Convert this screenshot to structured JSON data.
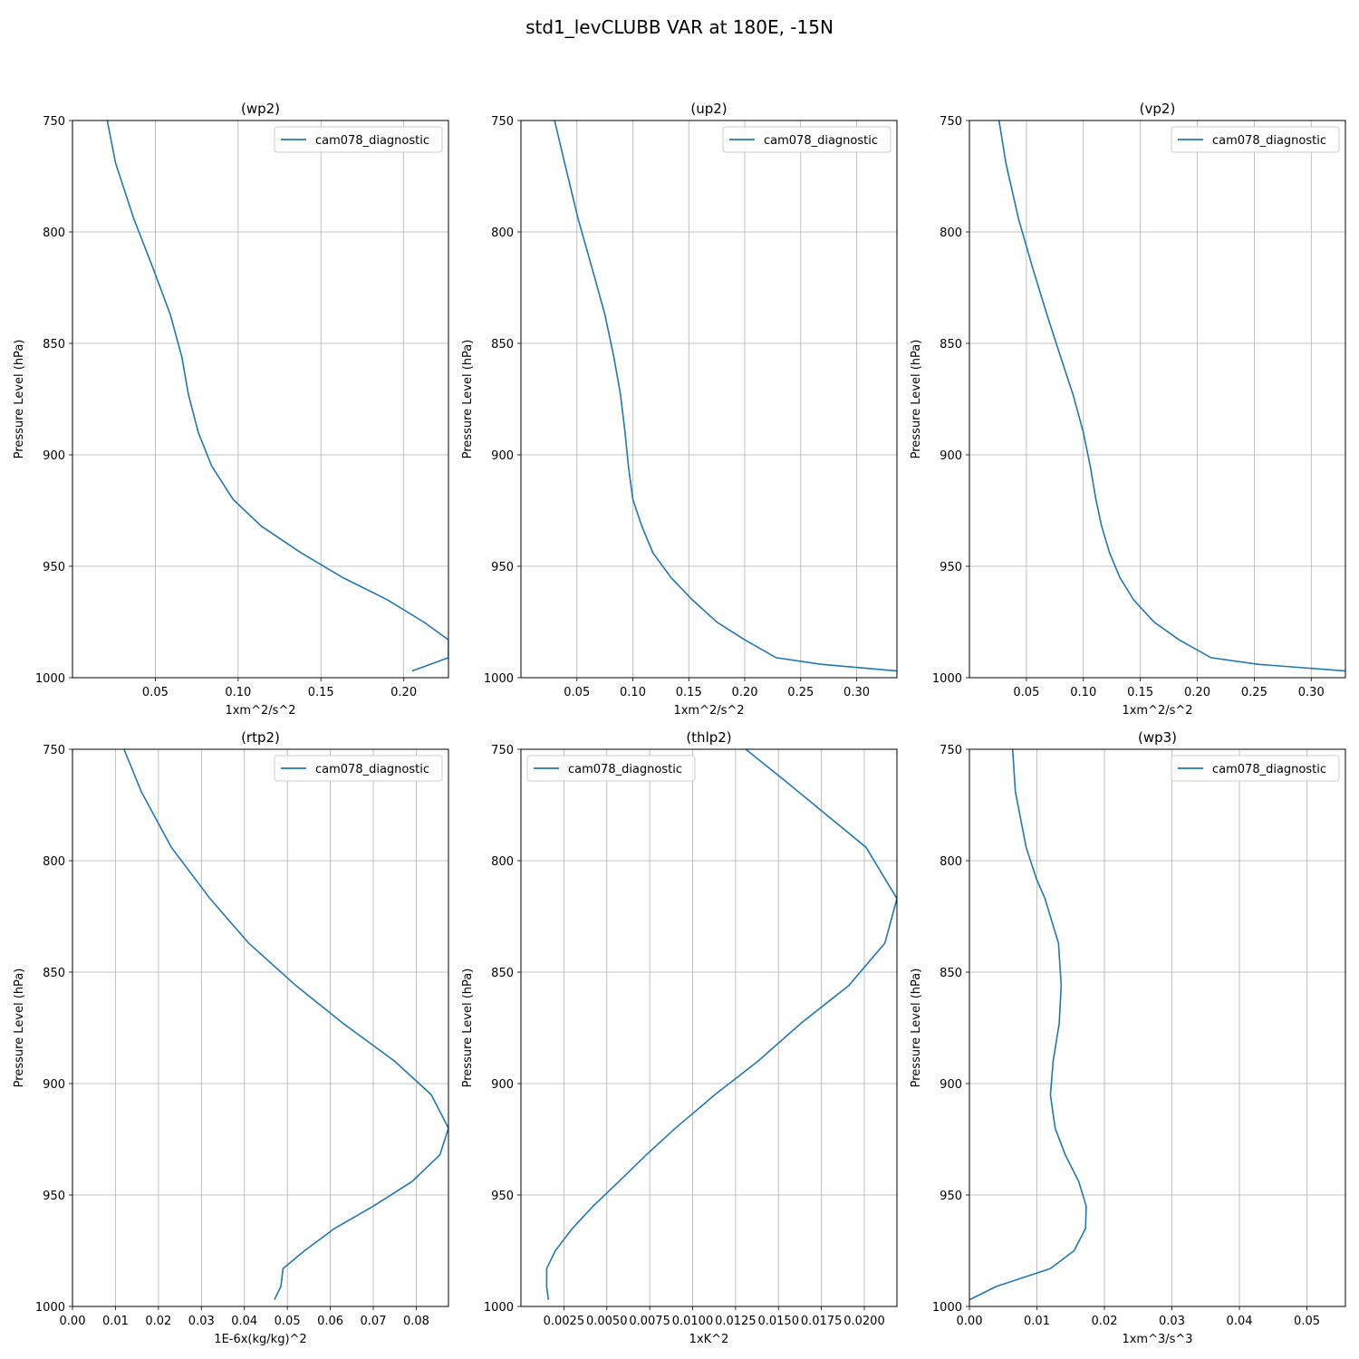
{
  "suptitle": "std1_levCLUBB VAR at 180E, -15N",
  "chart_data": [
    {
      "type": "line",
      "title": "(wp2)",
      "xlabel": "1xm^2/s^2",
      "ylabel": "Pressure Level (hPa)",
      "xlim": [
        0.0,
        0.227
      ],
      "ylim": [
        1000,
        750
      ],
      "xticks": [
        0.05,
        0.1,
        0.15,
        0.2
      ],
      "xtick_labels": [
        "0.05",
        "0.10",
        "0.15",
        "0.20"
      ],
      "yticks": [
        750,
        800,
        850,
        900,
        950,
        1000
      ],
      "ytick_labels": [
        "750",
        "800",
        "850",
        "900",
        "950",
        "1000"
      ],
      "grid": true,
      "legend_loc": "upper right",
      "color": "#1f77b4",
      "series": [
        {
          "name": "cam078_diagnostic",
          "x": [
            0.021,
            0.026,
            0.037,
            0.049,
            0.059,
            0.066,
            0.07,
            0.076,
            0.084,
            0.097,
            0.114,
            0.138,
            0.163,
            0.19,
            0.212,
            0.227,
            0.227,
            0.205
          ],
          "y": [
            750,
            769,
            794,
            817,
            837,
            856,
            873,
            890,
            905,
            920,
            932,
            944,
            955,
            965,
            975,
            983,
            991,
            997
          ]
        }
      ]
    },
    {
      "type": "line",
      "title": "(up2)",
      "xlabel": "1xm^2/s^2",
      "ylabel": "Pressure Level (hPa)",
      "xlim": [
        0.0,
        0.336
      ],
      "ylim": [
        1000,
        750
      ],
      "xticks": [
        0.05,
        0.1,
        0.15,
        0.2,
        0.25,
        0.3
      ],
      "xtick_labels": [
        "0.05",
        "0.10",
        "0.15",
        "0.20",
        "0.25",
        "0.30"
      ],
      "yticks": [
        750,
        800,
        850,
        900,
        950,
        1000
      ],
      "ytick_labels": [
        "750",
        "800",
        "850",
        "900",
        "950",
        "1000"
      ],
      "grid": true,
      "legend_loc": "upper right",
      "color": "#1f77b4",
      "series": [
        {
          "name": "cam078_diagnostic",
          "x": [
            0.03,
            0.039,
            0.051,
            0.064,
            0.075,
            0.083,
            0.089,
            0.093,
            0.096,
            0.1,
            0.108,
            0.118,
            0.134,
            0.153,
            0.175,
            0.2,
            0.228,
            0.268,
            0.336
          ],
          "y": [
            750,
            769,
            794,
            817,
            837,
            856,
            873,
            890,
            905,
            920,
            932,
            944,
            955,
            965,
            975,
            983,
            991,
            994,
            997
          ]
        }
      ]
    },
    {
      "type": "line",
      "title": "(vp2)",
      "xlabel": "1xm^2/s^2",
      "ylabel": "Pressure Level (hPa)",
      "xlim": [
        0.0,
        0.33
      ],
      "ylim": [
        1000,
        750
      ],
      "xticks": [
        0.05,
        0.1,
        0.15,
        0.2,
        0.25,
        0.3
      ],
      "xtick_labels": [
        "0.05",
        "0.10",
        "0.15",
        "0.20",
        "0.25",
        "0.30"
      ],
      "yticks": [
        750,
        800,
        850,
        900,
        950,
        1000
      ],
      "ytick_labels": [
        "750",
        "800",
        "850",
        "900",
        "950",
        "1000"
      ],
      "grid": true,
      "legend_loc": "upper right",
      "color": "#1f77b4",
      "series": [
        {
          "name": "cam078_diagnostic",
          "x": [
            0.026,
            0.032,
            0.043,
            0.056,
            0.068,
            0.08,
            0.091,
            0.1,
            0.106,
            0.111,
            0.116,
            0.123,
            0.132,
            0.144,
            0.162,
            0.184,
            0.212,
            0.253,
            0.33
          ],
          "y": [
            750,
            769,
            794,
            817,
            837,
            856,
            873,
            890,
            905,
            920,
            932,
            944,
            955,
            965,
            975,
            983,
            991,
            994,
            997
          ]
        }
      ]
    },
    {
      "type": "line",
      "title": "(rtp2)",
      "xlabel": "1E-6x(kg/kg)^2",
      "ylabel": "Pressure Level (hPa)",
      "xlim": [
        0.0,
        0.0875
      ],
      "ylim": [
        1000,
        750
      ],
      "xticks": [
        0.0,
        0.01,
        0.02,
        0.03,
        0.04,
        0.05,
        0.06,
        0.07,
        0.08
      ],
      "xtick_labels": [
        "0.00",
        "0.01",
        "0.02",
        "0.03",
        "0.04",
        "0.05",
        "0.06",
        "0.07",
        "0.08"
      ],
      "yticks": [
        750,
        800,
        850,
        900,
        950,
        1000
      ],
      "ytick_labels": [
        "750",
        "800",
        "850",
        "900",
        "950",
        "1000"
      ],
      "grid": true,
      "legend_loc": "upper right",
      "color": "#1f77b4",
      "series": [
        {
          "name": "cam078_diagnostic",
          "x": [
            0.012,
            0.016,
            0.023,
            0.032,
            0.041,
            0.052,
            0.063,
            0.075,
            0.0835,
            0.0875,
            0.0855,
            0.079,
            0.07,
            0.061,
            0.054,
            0.049,
            0.0485,
            0.047
          ],
          "y": [
            750,
            769,
            794,
            817,
            837,
            856,
            873,
            890,
            905,
            920,
            932,
            944,
            955,
            965,
            975,
            983,
            991,
            997
          ]
        }
      ]
    },
    {
      "type": "line",
      "title": "(thlp2)",
      "xlabel": "1xK^2",
      "ylabel": "Pressure Level (hPa)",
      "xlim": [
        0.0,
        0.0219
      ],
      "ylim": [
        1000,
        750
      ],
      "xticks": [
        0.0025,
        0.005,
        0.0075,
        0.01,
        0.0125,
        0.015,
        0.0175,
        0.02
      ],
      "xtick_labels": [
        "0.0025",
        "0.0050",
        "0.0075",
        "0.0100",
        "0.0125",
        "0.0150",
        "0.0175",
        "0.0200"
      ],
      "yticks": [
        750,
        800,
        850,
        900,
        950,
        1000
      ],
      "ytick_labels": [
        "750",
        "800",
        "850",
        "900",
        "950",
        "1000"
      ],
      "grid": true,
      "legend_loc": "upper left",
      "color": "#1f77b4",
      "series": [
        {
          "name": "cam078_diagnostic",
          "x": [
            0.0131,
            0.0152,
            0.0201,
            0.0219,
            0.0212,
            0.0191,
            0.0163,
            0.0138,
            0.0113,
            0.009,
            0.0073,
            0.0057,
            0.0042,
            0.003,
            0.002,
            0.0015,
            0.0015,
            0.0016
          ],
          "y": [
            750,
            763,
            794,
            817,
            837,
            856,
            873,
            890,
            905,
            920,
            932,
            944,
            955,
            965,
            975,
            983,
            991,
            997
          ]
        }
      ]
    },
    {
      "type": "line",
      "title": "(wp3)",
      "xlabel": "1xm^3/s^3",
      "ylabel": "Pressure Level (hPa)",
      "xlim": [
        0.0,
        0.0557
      ],
      "ylim": [
        1000,
        750
      ],
      "xticks": [
        0.0,
        0.01,
        0.02,
        0.03,
        0.04,
        0.05
      ],
      "xtick_labels": [
        "0.00",
        "0.01",
        "0.02",
        "0.03",
        "0.04",
        "0.05"
      ],
      "yticks": [
        750,
        800,
        850,
        900,
        950,
        1000
      ],
      "ytick_labels": [
        "750",
        "800",
        "850",
        "900",
        "950",
        "1000"
      ],
      "grid": true,
      "legend_loc": "upper right",
      "color": "#1f77b4",
      "series": [
        {
          "name": "cam078_diagnostic",
          "x": [
            0.0064,
            0.0068,
            0.0084,
            0.0099,
            0.0112,
            0.0132,
            0.0136,
            0.0133,
            0.0124,
            0.012,
            0.0127,
            0.0142,
            0.0162,
            0.0173,
            0.0172,
            0.0155,
            0.012,
            0.004,
            0.0
          ],
          "y": [
            750,
            769,
            794,
            808,
            817,
            837,
            856,
            873,
            890,
            905,
            920,
            932,
            944,
            955,
            965,
            975,
            983,
            991,
            997
          ]
        }
      ]
    }
  ]
}
